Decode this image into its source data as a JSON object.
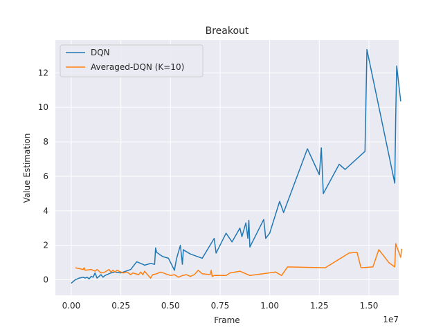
{
  "chart_data": {
    "type": "line",
    "title": "Breakout",
    "xlabel": "Frame",
    "ylabel": "Value Estimation",
    "x_offset_text": "1e7",
    "xlim": [
      -0.08,
      1.65
    ],
    "ylim": [
      -0.9,
      13.9
    ],
    "xticks": [
      0.0,
      0.25,
      0.5,
      0.75,
      1.0,
      1.25,
      1.5
    ],
    "xtick_labels": [
      "0.00",
      "0.25",
      "0.50",
      "0.75",
      "1.00",
      "1.25",
      "1.50"
    ],
    "yticks": [
      0,
      2,
      4,
      6,
      8,
      10,
      12
    ],
    "ytick_labels": [
      "0",
      "2",
      "4",
      "6",
      "8",
      "10",
      "12"
    ],
    "grid": true,
    "legend_position": "top-left",
    "background_color": "#eaeaf2",
    "series": [
      {
        "name": "DQN",
        "color": "#1f77b4",
        "x": [
          0.0,
          0.02,
          0.04,
          0.06,
          0.07,
          0.08,
          0.09,
          0.1,
          0.11,
          0.12,
          0.13,
          0.14,
          0.15,
          0.16,
          0.17,
          0.18,
          0.19,
          0.2,
          0.22,
          0.25,
          0.3,
          0.33,
          0.36,
          0.37,
          0.4,
          0.42,
          0.425,
          0.43,
          0.46,
          0.49,
          0.52,
          0.53,
          0.55,
          0.56,
          0.565,
          0.57,
          0.6,
          0.66,
          0.72,
          0.73,
          0.78,
          0.81,
          0.85,
          0.86,
          0.88,
          0.89,
          0.895,
          0.9,
          0.97,
          0.98,
          1.0,
          1.05,
          1.07,
          1.19,
          1.25,
          1.26,
          1.27,
          1.35,
          1.38,
          1.48,
          1.49,
          1.63,
          1.635,
          1.64,
          1.66
        ],
        "y": [
          -0.2,
          0.0,
          0.1,
          0.15,
          0.1,
          0.15,
          0.05,
          0.2,
          0.15,
          0.4,
          0.1,
          0.2,
          0.3,
          0.15,
          0.25,
          0.3,
          0.35,
          0.4,
          0.45,
          0.4,
          0.6,
          1.05,
          0.9,
          0.85,
          0.95,
          0.9,
          1.85,
          1.6,
          1.35,
          1.25,
          0.55,
          1.2,
          2.0,
          0.9,
          1.75,
          1.7,
          1.5,
          1.25,
          2.4,
          1.55,
          2.7,
          2.2,
          3.0,
          2.5,
          3.3,
          2.4,
          3.45,
          1.9,
          3.5,
          2.4,
          2.7,
          4.55,
          3.9,
          7.6,
          6.1,
          7.65,
          5.0,
          6.7,
          6.4,
          7.45,
          13.35,
          5.6,
          9.5,
          12.4,
          10.35
        ]
      },
      {
        "name": "Averaged-DQN (K=10)",
        "color": "#ff7f0e",
        "x": [
          0.02,
          0.06,
          0.065,
          0.07,
          0.1,
          0.12,
          0.13,
          0.15,
          0.17,
          0.19,
          0.2,
          0.21,
          0.22,
          0.23,
          0.26,
          0.28,
          0.3,
          0.31,
          0.34,
          0.35,
          0.36,
          0.37,
          0.38,
          0.4,
          0.41,
          0.43,
          0.45,
          0.5,
          0.52,
          0.54,
          0.56,
          0.58,
          0.6,
          0.62,
          0.64,
          0.66,
          0.7,
          0.705,
          0.71,
          0.72,
          0.78,
          0.8,
          0.85,
          0.9,
          1.03,
          1.06,
          1.09,
          1.28,
          1.4,
          1.44,
          1.46,
          1.52,
          1.55,
          1.6,
          1.63,
          1.635,
          1.66,
          1.665
        ],
        "y": [
          0.7,
          0.6,
          0.7,
          0.55,
          0.6,
          0.5,
          0.6,
          0.4,
          0.45,
          0.6,
          0.45,
          0.55,
          0.45,
          0.55,
          0.4,
          0.45,
          0.3,
          0.4,
          0.3,
          0.45,
          0.3,
          0.5,
          0.35,
          0.1,
          0.3,
          0.35,
          0.45,
          0.25,
          0.3,
          0.15,
          0.25,
          0.3,
          0.2,
          0.3,
          0.55,
          0.35,
          0.3,
          0.55,
          0.2,
          0.25,
          0.25,
          0.4,
          0.5,
          0.25,
          0.45,
          0.25,
          0.75,
          0.7,
          1.55,
          1.6,
          0.7,
          0.75,
          1.75,
          1.0,
          0.75,
          2.1,
          1.3,
          1.8
        ]
      }
    ]
  }
}
